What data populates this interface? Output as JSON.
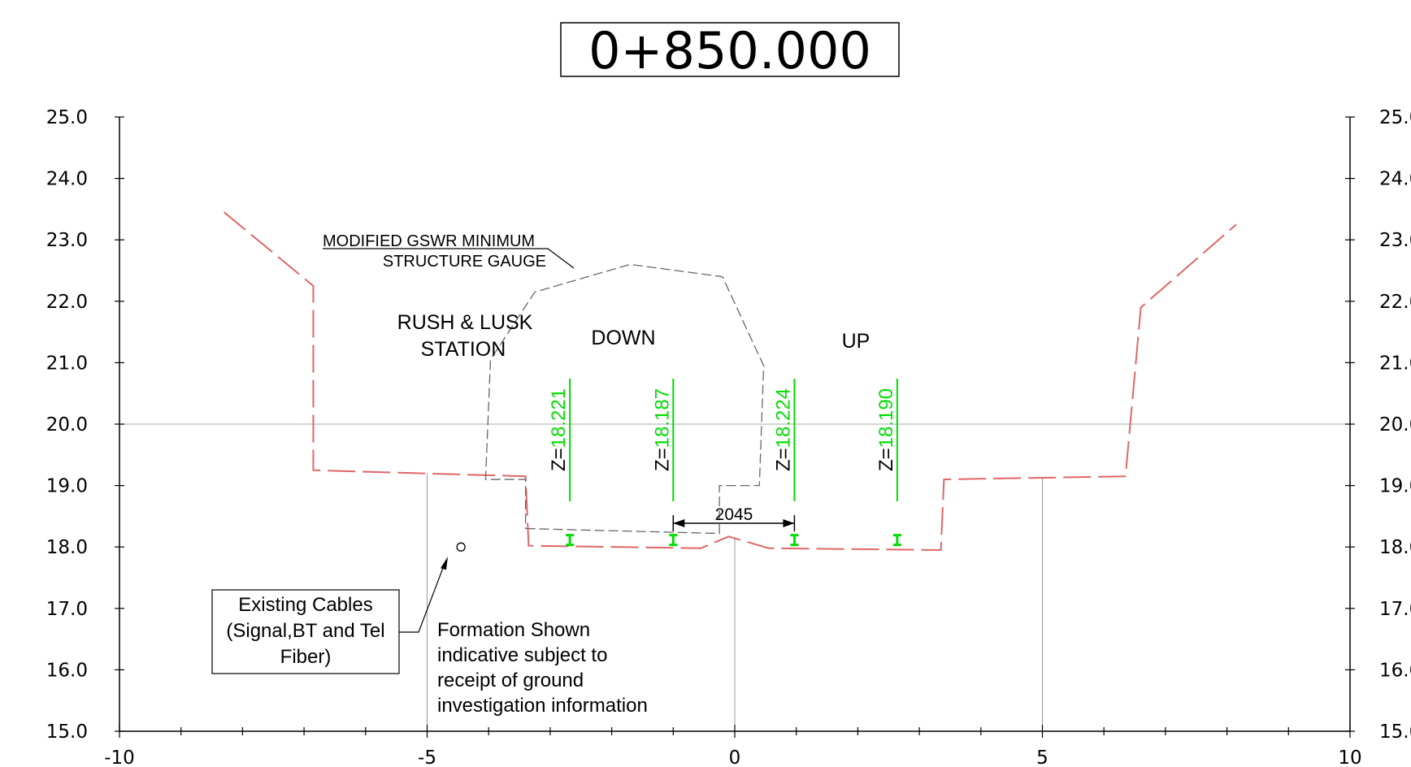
{
  "title": "0+850.000",
  "y_ticks": [
    {
      "label": "25.0",
      "value": 25
    },
    {
      "label": "24.0",
      "value": 24
    },
    {
      "label": "23.0",
      "value": 23
    },
    {
      "label": "22.0",
      "value": 22
    },
    {
      "label": "21.0",
      "value": 21
    },
    {
      "label": "20.0",
      "value": 20
    },
    {
      "label": "19.0",
      "value": 19
    },
    {
      "label": "18.0",
      "value": 18
    },
    {
      "label": "17.0",
      "value": 17
    },
    {
      "label": "16.0",
      "value": 16
    },
    {
      "label": "15.0",
      "value": 15
    }
  ],
  "x_ticks": [
    {
      "label": "-10",
      "value": -10
    },
    {
      "label": "-5",
      "value": -5
    },
    {
      "label": "0",
      "value": 0
    },
    {
      "label": "5",
      "value": 5
    },
    {
      "label": "10",
      "value": 10
    }
  ],
  "labels": {
    "gauge_line1": "MODIFIED GSWR MINIMUM",
    "gauge_line2": "STRUCTURE GAUGE",
    "station_line1": "RUSH & LUSK",
    "station_line2": "STATION",
    "down": "DOWN",
    "up": "UP",
    "dimension": "2045",
    "cables_line1": "Existing Cables",
    "cables_line2": "(Signal,BT and Tel",
    "cables_line3": "Fiber)",
    "formation_line1": "Formation Shown",
    "formation_line2": "indicative subject to",
    "formation_line3": "receipt of ground",
    "formation_line4": "investigation information"
  },
  "rail_levels": [
    {
      "prefix": "Z=",
      "value": "18.221",
      "x": -2.68
    },
    {
      "prefix": "Z=",
      "value": "18.187",
      "x": -1.0
    },
    {
      "prefix": "Z=",
      "value": "18.224",
      "x": 0.97
    },
    {
      "prefix": "Z=",
      "value": "18.190",
      "x": 2.64
    }
  ],
  "colors": {
    "ground": "#e06666",
    "gauge": "#666666",
    "rail": "#00dd00",
    "axis": "#000000",
    "grid": "#bbbbbb"
  },
  "chart_data": {
    "type": "cross-section",
    "title": "0+850.000",
    "xlim": [
      -10,
      10
    ],
    "ylim": [
      15,
      25
    ],
    "ground_profile": [
      {
        "x": -8.3,
        "y": 23.45
      },
      {
        "x": -6.85,
        "y": 22.25
      },
      {
        "x": -6.85,
        "y": 19.25
      },
      {
        "x": -3.4,
        "y": 19.15
      },
      {
        "x": -3.35,
        "y": 18.02
      },
      {
        "x": -0.55,
        "y": 17.98
      },
      {
        "x": -0.1,
        "y": 18.17
      },
      {
        "x": 0.55,
        "y": 17.98
      },
      {
        "x": 3.35,
        "y": 17.95
      },
      {
        "x": 3.4,
        "y": 19.1
      },
      {
        "x": 6.35,
        "y": 19.15
      },
      {
        "x": 6.6,
        "y": 21.9
      },
      {
        "x": 8.15,
        "y": 23.25
      }
    ],
    "structure_gauge": [
      {
        "x": -3.4,
        "y": 18.3
      },
      {
        "x": -0.25,
        "y": 18.22
      },
      {
        "x": -0.25,
        "y": 19.0
      },
      {
        "x": 0.4,
        "y": 19.0
      },
      {
        "x": 0.47,
        "y": 20.95
      },
      {
        "x": -0.2,
        "y": 22.4
      },
      {
        "x": -1.7,
        "y": 22.6
      },
      {
        "x": -3.25,
        "y": 22.15
      },
      {
        "x": -3.97,
        "y": 21.05
      },
      {
        "x": -4.05,
        "y": 19.1
      },
      {
        "x": -3.4,
        "y": 19.1
      },
      {
        "x": -3.4,
        "y": 18.3
      }
    ],
    "vertical_markers_x": [
      -5,
      0,
      5
    ],
    "reference_level": 20.0,
    "dimension": {
      "x1": -1.0,
      "x2": 0.97,
      "y": 18.38,
      "label": "2045"
    },
    "cable_point": {
      "x": -4.45,
      "y": 18.0
    }
  }
}
